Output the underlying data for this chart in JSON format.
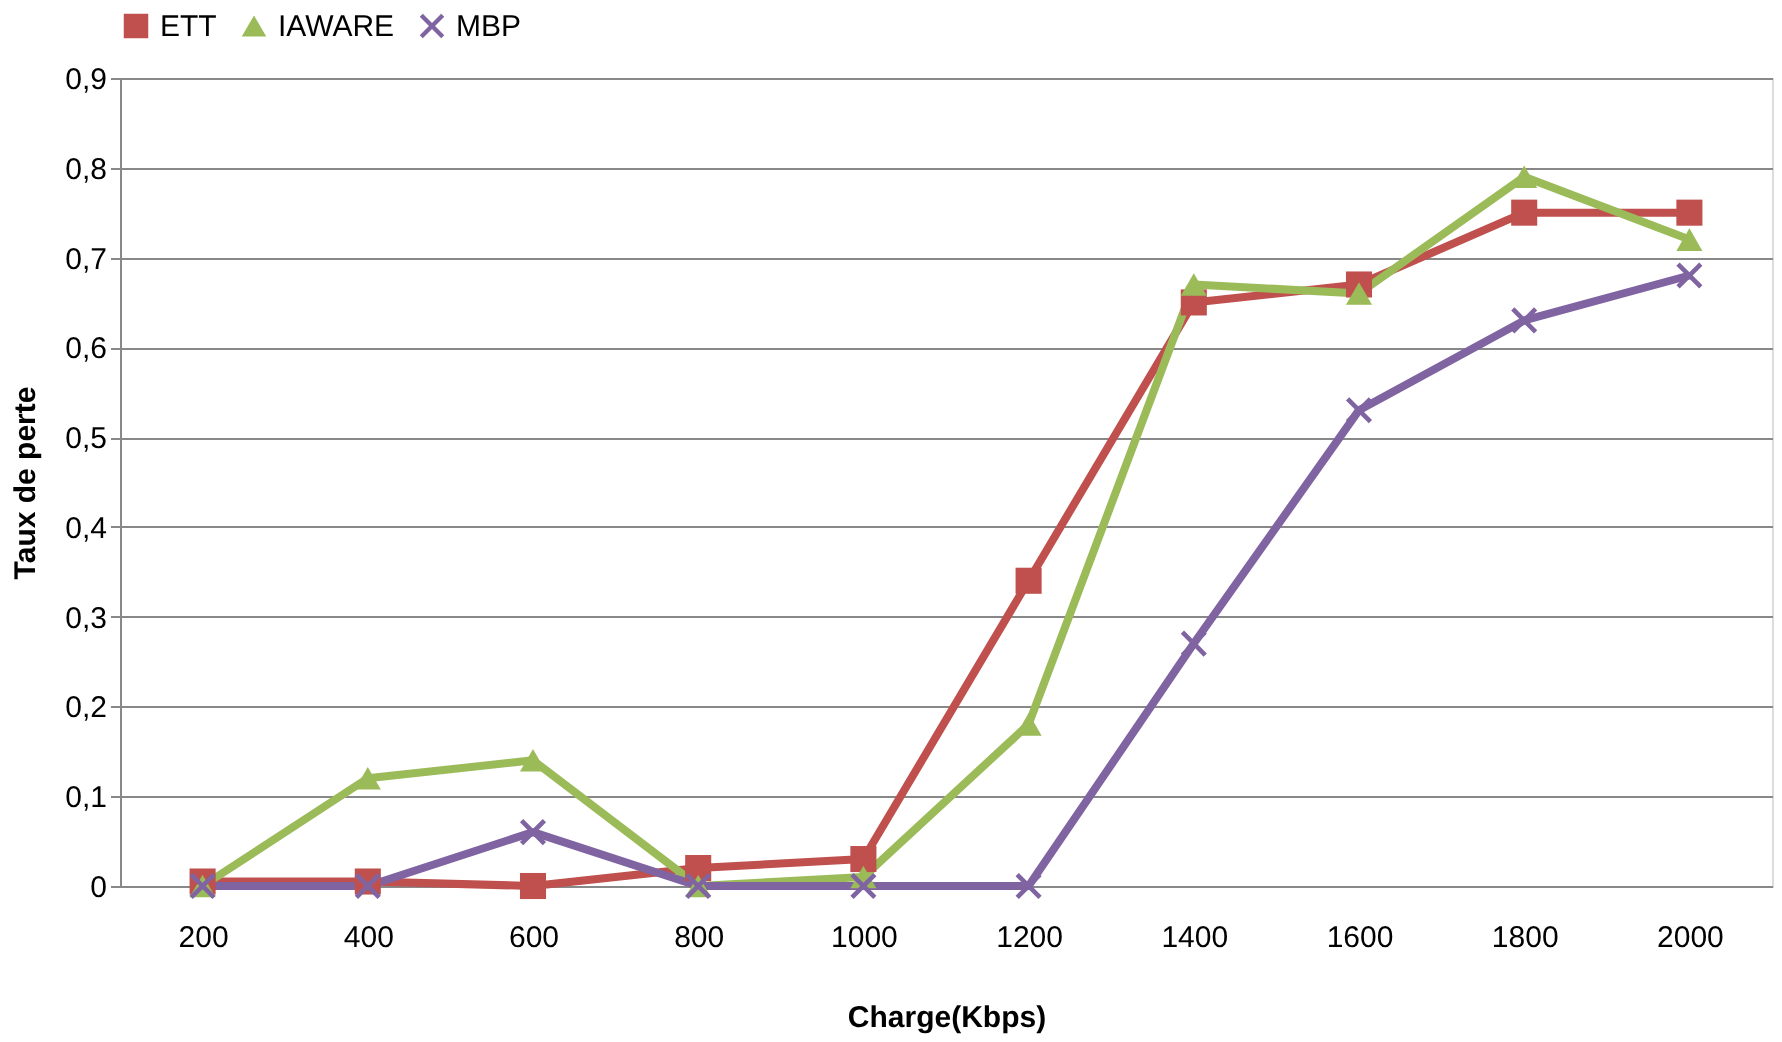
{
  "chart_data": {
    "type": "line",
    "xlabel": "Charge(Kbps)",
    "ylabel": "Taux de perte",
    "categories": [
      "200",
      "400",
      "600",
      "800",
      "1000",
      "1200",
      "1400",
      "1600",
      "1800",
      "2000"
    ],
    "series": [
      {
        "name": "ETT",
        "color": "#c0504d",
        "marker": "square",
        "values": [
          0.005,
          0.005,
          0,
          0.02,
          0.03,
          0.34,
          0.65,
          0.67,
          0.75,
          0.75
        ]
      },
      {
        "name": "IAWARE",
        "color": "#9bbb59",
        "marker": "triangle",
        "values": [
          0,
          0.12,
          0.14,
          0,
          0.01,
          0.18,
          0.67,
          0.66,
          0.79,
          0.72
        ]
      },
      {
        "name": "MBP",
        "color": "#8064a2",
        "marker": "cross",
        "values": [
          0,
          0,
          0.06,
          0,
          0,
          0,
          0.27,
          0.53,
          0.63,
          0.68
        ]
      }
    ],
    "ylim": [
      0,
      0.9
    ],
    "yticks": [
      {
        "value": 0,
        "label": "0"
      },
      {
        "value": 0.1,
        "label": "0,1"
      },
      {
        "value": 0.2,
        "label": "0,2"
      },
      {
        "value": 0.3,
        "label": "0,3"
      },
      {
        "value": 0.4,
        "label": "0,4"
      },
      {
        "value": 0.5,
        "label": "0,5"
      },
      {
        "value": 0.6,
        "label": "0,6"
      },
      {
        "value": 0.7,
        "label": "0,7"
      },
      {
        "value": 0.8,
        "label": "0,8"
      },
      {
        "value": 0.9,
        "label": "0,9"
      }
    ],
    "grid": "y",
    "legend": "top",
    "line_style": "solid"
  }
}
